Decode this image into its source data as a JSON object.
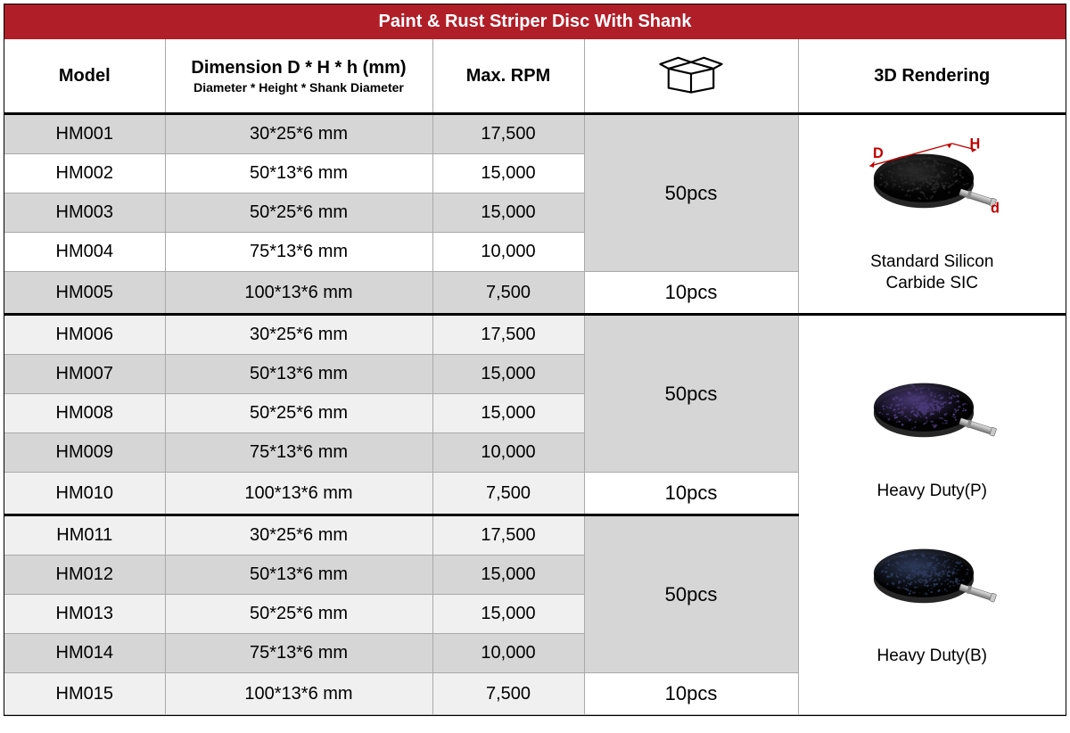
{
  "title": "Paint & Rust Striper Disc With Shank",
  "columns": {
    "model": "Model",
    "dimension_main": "Dimension D * H * h (mm)",
    "dimension_sub": "Diameter * Height * Shank Diameter",
    "rpm": "Max. RPM",
    "rendering": "3D Rendering"
  },
  "renderings": [
    {
      "caption": "Standard  Silicon\nCarbide SIC",
      "disc_color": "#2a2a2a",
      "show_dim_labels": true
    },
    {
      "caption": "Heavy Duty(P)",
      "disc_color": "#4a3a78",
      "show_dim_labels": false
    },
    {
      "caption": "Heavy Duty(B)",
      "disc_color": "#2d3a5a",
      "show_dim_labels": false
    }
  ],
  "groups": [
    {
      "qty_main": "50pcs",
      "qty_last": "10pcs",
      "rows": [
        {
          "model": "HM001",
          "dim": "30*25*6 mm",
          "rpm": "17,500"
        },
        {
          "model": "HM002",
          "dim": "50*13*6 mm",
          "rpm": "15,000"
        },
        {
          "model": "HM003",
          "dim": "50*25*6 mm",
          "rpm": "15,000"
        },
        {
          "model": "HM004",
          "dim": "75*13*6 mm",
          "rpm": "10,000"
        },
        {
          "model": "HM005",
          "dim": "100*13*6 mm",
          "rpm": "7,500"
        }
      ]
    },
    {
      "qty_main": "50pcs",
      "qty_last": "10pcs",
      "rows": [
        {
          "model": "HM006",
          "dim": "30*25*6 mm",
          "rpm": "17,500"
        },
        {
          "model": "HM007",
          "dim": "50*13*6 mm",
          "rpm": "15,000"
        },
        {
          "model": "HM008",
          "dim": "50*25*6 mm",
          "rpm": "15,000"
        },
        {
          "model": "HM009",
          "dim": "75*13*6 mm",
          "rpm": "10,000"
        },
        {
          "model": "HM010",
          "dim": "100*13*6 mm",
          "rpm": "7,500"
        }
      ]
    },
    {
      "qty_main": "50pcs",
      "qty_last": "10pcs",
      "rows": [
        {
          "model": "HM011",
          "dim": "30*25*6 mm",
          "rpm": "17,500"
        },
        {
          "model": "HM012",
          "dim": "50*13*6 mm",
          "rpm": "15,000"
        },
        {
          "model": "HM013",
          "dim": "50*25*6 mm",
          "rpm": "15,000"
        },
        {
          "model": "HM014",
          "dim": "75*13*6 mm",
          "rpm": "10,000"
        },
        {
          "model": "HM015",
          "dim": "100*13*6 mm",
          "rpm": "7,500"
        }
      ]
    }
  ],
  "colors": {
    "title_bg": "#b01e28",
    "shade_row": "#d6d6d6",
    "light_row": "#f0f0f0",
    "border": "#a9a9a9",
    "dim_label": "#c00000"
  }
}
